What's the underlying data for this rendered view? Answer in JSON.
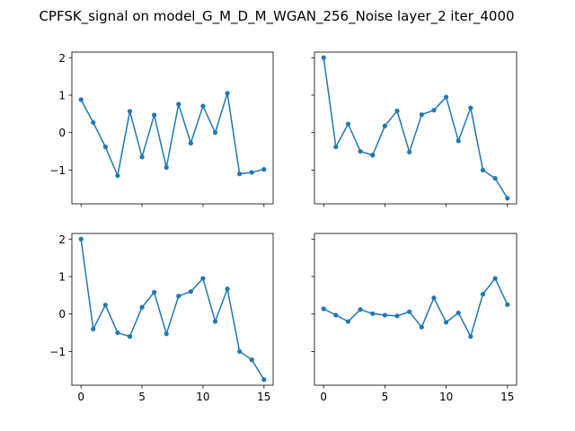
{
  "figure": {
    "title": "CPFSK_signal on model_G_M_D_M_WGAN_256_Noise layer_2 iter_4000"
  },
  "chart_data": [
    {
      "type": "line",
      "x": [
        0,
        1,
        2,
        3,
        4,
        5,
        6,
        7,
        8,
        9,
        10,
        11,
        12,
        13,
        14,
        15
      ],
      "values": [
        0.88,
        0.27,
        -0.38,
        -1.15,
        0.57,
        -0.65,
        0.47,
        -0.93,
        0.76,
        -0.28,
        0.71,
        0.0,
        1.05,
        -1.1,
        -1.06,
        -0.98
      ],
      "xlim": [
        -0.75,
        15.75
      ],
      "ylim": [
        -1.9,
        2.15
      ],
      "xticks": [
        0,
        5,
        10,
        15
      ],
      "yticks": [
        -1,
        0,
        1,
        2
      ],
      "show_xticklabels": false,
      "show_yticklabels": true,
      "color": "#1f77b4",
      "marker": "circle",
      "grid": false
    },
    {
      "type": "line",
      "x": [
        0,
        1,
        2,
        3,
        4,
        5,
        6,
        7,
        8,
        9,
        10,
        11,
        12,
        13,
        14,
        15
      ],
      "values": [
        2.0,
        -0.38,
        0.23,
        -0.5,
        -0.6,
        0.18,
        0.58,
        -0.52,
        0.48,
        0.6,
        0.95,
        -0.22,
        0.66,
        -1.0,
        -1.22,
        -1.75
      ],
      "xlim": [
        -0.75,
        15.75
      ],
      "ylim": [
        -1.9,
        2.15
      ],
      "xticks": [
        0,
        5,
        10,
        15
      ],
      "yticks": [
        -1,
        0,
        1,
        2
      ],
      "show_xticklabels": false,
      "show_yticklabels": false,
      "color": "#1f77b4",
      "marker": "circle",
      "grid": false
    },
    {
      "type": "line",
      "x": [
        0,
        1,
        2,
        3,
        4,
        5,
        6,
        7,
        8,
        9,
        10,
        11,
        12,
        13,
        14,
        15
      ],
      "values": [
        2.0,
        -0.4,
        0.24,
        -0.5,
        -0.6,
        0.18,
        0.58,
        -0.53,
        0.48,
        0.6,
        0.95,
        -0.2,
        0.67,
        -1.0,
        -1.22,
        -1.75
      ],
      "xlim": [
        -0.75,
        15.75
      ],
      "ylim": [
        -1.9,
        2.15
      ],
      "xticks": [
        0,
        5,
        10,
        15
      ],
      "yticks": [
        -1,
        0,
        1,
        2
      ],
      "show_xticklabels": true,
      "show_yticklabels": true,
      "color": "#1f77b4",
      "marker": "circle",
      "grid": false
    },
    {
      "type": "line",
      "x": [
        0,
        1,
        2,
        3,
        4,
        5,
        6,
        7,
        8,
        9,
        10,
        11,
        12,
        13,
        14,
        15
      ],
      "values": [
        0.14,
        -0.03,
        -0.2,
        0.12,
        0.01,
        -0.03,
        -0.05,
        0.06,
        -0.35,
        0.43,
        -0.22,
        0.03,
        -0.6,
        0.53,
        0.95,
        0.25
      ],
      "xlim": [
        -0.75,
        15.75
      ],
      "ylim": [
        -1.9,
        2.15
      ],
      "xticks": [
        0,
        5,
        10,
        15
      ],
      "yticks": [
        -1,
        0,
        1,
        2
      ],
      "show_xticklabels": true,
      "show_yticklabels": false,
      "color": "#1f77b4",
      "marker": "circle",
      "grid": false
    }
  ]
}
